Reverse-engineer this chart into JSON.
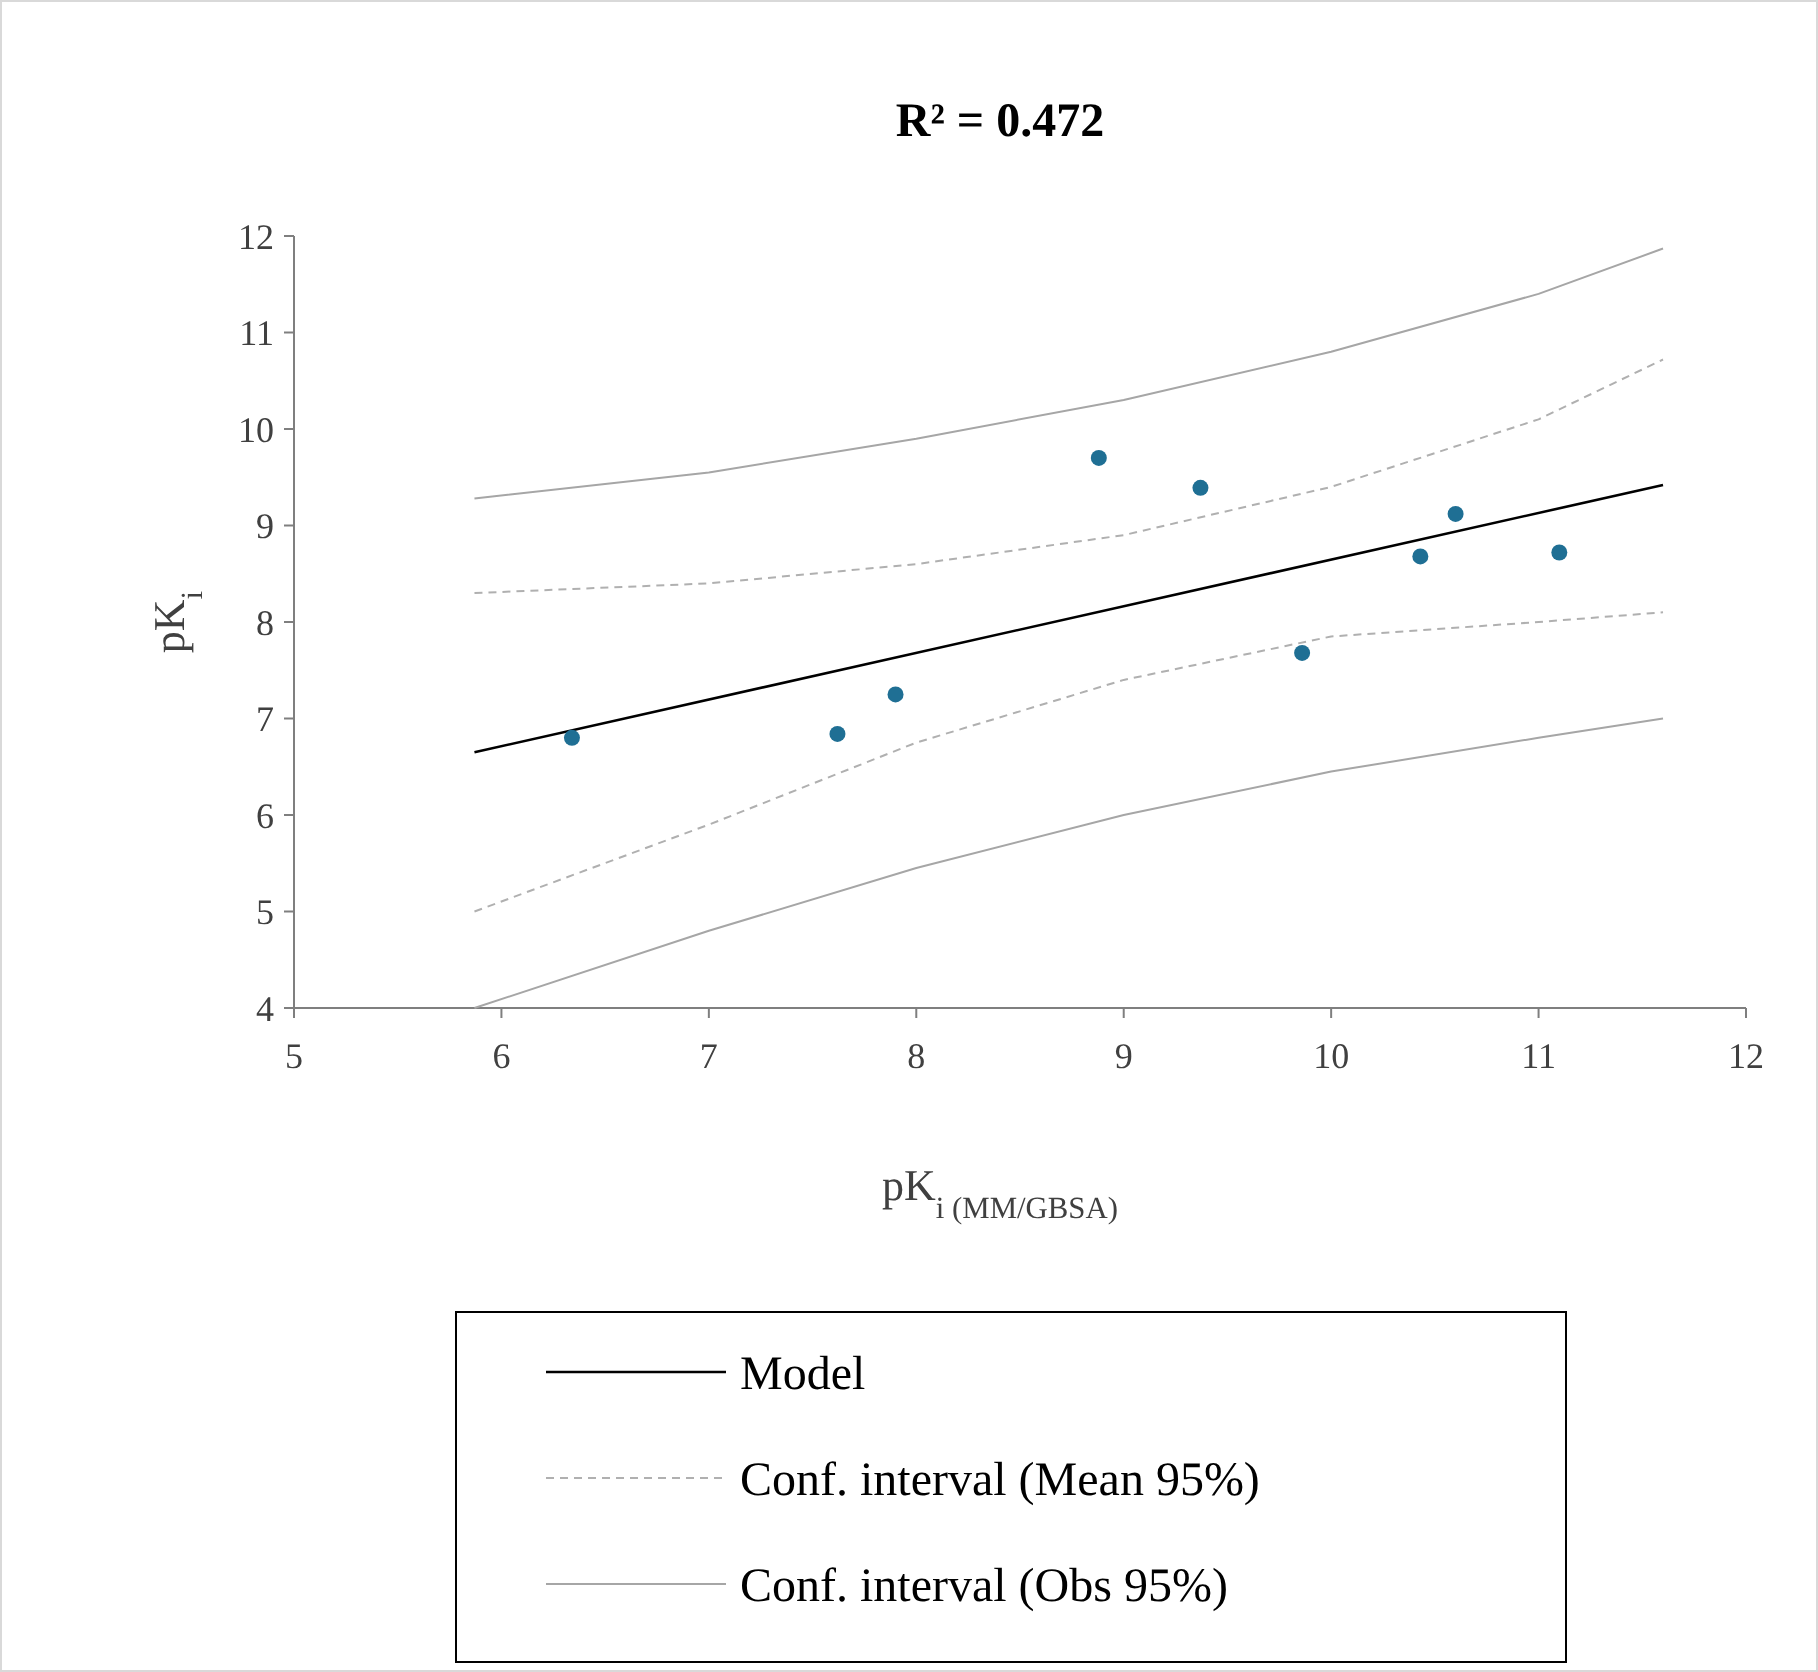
{
  "chart_data": {
    "type": "scatter",
    "title": "R² = 0.472",
    "xlabel": "pK$_{i (MM/GBSA)}$",
    "ylabel": "pK$_{i}$",
    "xlim": [
      5,
      12
    ],
    "ylim": [
      4,
      12
    ],
    "xticks": [
      5,
      6,
      7,
      8,
      9,
      10,
      11,
      12
    ],
    "yticks": [
      4,
      5,
      6,
      7,
      8,
      9,
      10,
      11,
      12
    ],
    "grid": false,
    "legend": "bottom",
    "series": [
      {
        "type": "line",
        "name": "Model",
        "color": "#000000",
        "line_style": "solid",
        "marker": "none",
        "x": [
          5.87,
          11.6
        ],
        "values": [
          6.65,
          9.42
        ]
      },
      {
        "type": "line",
        "name": "Conf. interval (Mean 95%)",
        "color": "#b0b0b0",
        "line_style": "dashed",
        "marker": "none",
        "x": [
          5.87,
          7,
          8,
          9,
          10,
          11,
          11.6
        ],
        "values": [
          8.3,
          8.4,
          8.6,
          8.9,
          9.4,
          10.1,
          10.72
        ]
      },
      {
        "type": "line",
        "color": "#b0b0b0",
        "line_style": "dashed",
        "marker": "none",
        "x": [
          5.87,
          7,
          8,
          9,
          10,
          11,
          11.6
        ],
        "values": [
          5.0,
          5.9,
          6.75,
          7.4,
          7.85,
          8.0,
          8.1
        ]
      },
      {
        "type": "line",
        "name": "Conf. interval (Obs 95%)",
        "color": "#a6a6a6",
        "line_style": "solid",
        "marker": "none",
        "x": [
          5.87,
          7,
          8,
          9,
          10,
          11,
          11.6
        ],
        "values": [
          9.28,
          9.55,
          9.9,
          10.3,
          10.8,
          11.4,
          11.87
        ]
      },
      {
        "type": "line",
        "color": "#a6a6a6",
        "line_style": "solid",
        "marker": "none",
        "x": [
          5.87,
          7,
          8,
          9,
          10,
          11,
          11.6
        ],
        "values": [
          4.0,
          4.8,
          5.45,
          6.0,
          6.45,
          6.8,
          7.0
        ]
      },
      {
        "color": "#1f6f94",
        "marker": "circle",
        "x": [
          6.34,
          7.62,
          7.9,
          8.88,
          9.37,
          9.86,
          10.43,
          10.6,
          11.1
        ],
        "values": [
          6.8,
          6.84,
          7.25,
          9.7,
          9.39,
          7.68,
          8.68,
          9.12,
          8.72
        ]
      }
    ]
  }
}
